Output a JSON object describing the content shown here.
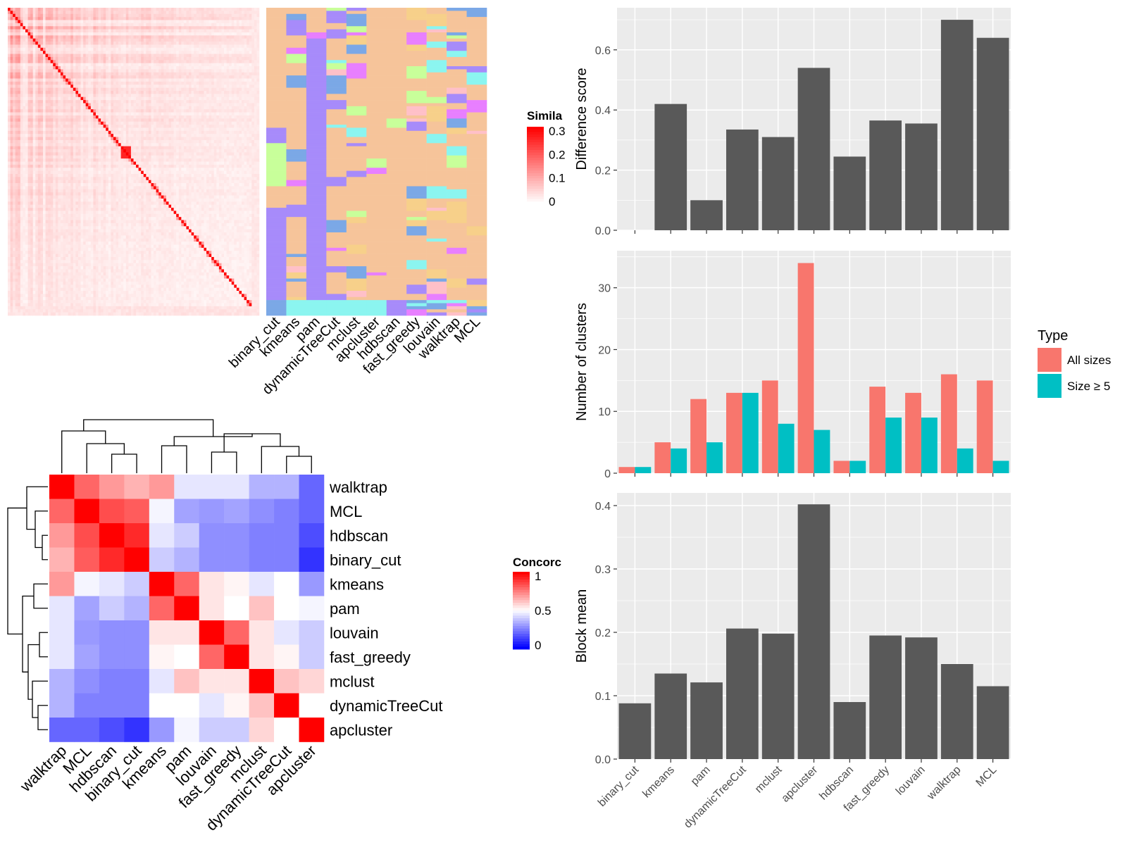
{
  "chart_data": [
    {
      "type": "heatmap",
      "id": "similarity_heatmap",
      "legend_title": "Simila",
      "legend_ticks": [
        "0.3",
        "0.2",
        "0.1",
        "0"
      ],
      "colors": {
        "high": "#ff0000",
        "low": "#ffffff"
      }
    },
    {
      "type": "heatmap",
      "id": "cluster_membership",
      "columns": [
        "binary_cut",
        "kmeans",
        "pam",
        "dynamicTreeCut",
        "mclust",
        "apcluster",
        "hdbscan",
        "fast_greedy",
        "louvain",
        "walktrap",
        "MCL"
      ],
      "palette": [
        "#f6c49a",
        "#a78bfa",
        "#7ba8e6",
        "#8bf5f0",
        "#c8ff9a",
        "#ffc0c8",
        "#e87fff",
        "#f7d08a"
      ]
    },
    {
      "type": "heatmap",
      "id": "concordance_heatmap",
      "legend_title": "Concorc",
      "legend_ticks": [
        "1",
        "0.5",
        "0"
      ],
      "colors": {
        "high": "#ff0000",
        "mid": "#ffffff",
        "low": "#0000ff"
      },
      "rows": [
        "walktrap",
        "MCL",
        "hdbscan",
        "binary_cut",
        "kmeans",
        "pam",
        "louvain",
        "fast_greedy",
        "mclust",
        "dynamicTreeCut",
        "apcluster"
      ],
      "columns": [
        "walktrap",
        "MCL",
        "hdbscan",
        "binary_cut",
        "kmeans",
        "pam",
        "louvain",
        "fast_greedy",
        "mclust",
        "dynamicTreeCut",
        "apcluster"
      ],
      "values": [
        [
          1.0,
          0.8,
          0.7,
          0.65,
          0.7,
          0.45,
          0.45,
          0.45,
          0.35,
          0.35,
          0.2
        ],
        [
          0.8,
          1.0,
          0.85,
          0.82,
          0.48,
          0.32,
          0.3,
          0.32,
          0.28,
          0.25,
          0.2
        ],
        [
          0.7,
          0.85,
          1.0,
          0.92,
          0.45,
          0.4,
          0.28,
          0.28,
          0.25,
          0.25,
          0.15
        ],
        [
          0.65,
          0.82,
          0.92,
          1.0,
          0.4,
          0.35,
          0.28,
          0.28,
          0.25,
          0.25,
          0.1
        ],
        [
          0.7,
          0.48,
          0.45,
          0.4,
          1.0,
          0.8,
          0.55,
          0.52,
          0.45,
          0.5,
          0.3
        ],
        [
          0.45,
          0.32,
          0.4,
          0.35,
          0.8,
          1.0,
          0.55,
          0.5,
          0.62,
          0.5,
          0.48
        ],
        [
          0.45,
          0.3,
          0.28,
          0.28,
          0.55,
          0.55,
          1.0,
          0.8,
          0.55,
          0.45,
          0.4
        ],
        [
          0.45,
          0.32,
          0.28,
          0.28,
          0.52,
          0.5,
          0.8,
          1.0,
          0.55,
          0.52,
          0.4
        ],
        [
          0.35,
          0.28,
          0.25,
          0.25,
          0.45,
          0.62,
          0.55,
          0.55,
          1.0,
          0.62,
          0.58
        ],
        [
          0.35,
          0.25,
          0.25,
          0.25,
          0.5,
          0.5,
          0.45,
          0.52,
          0.62,
          1.0,
          0.5
        ],
        [
          0.2,
          0.2,
          0.15,
          0.1,
          0.3,
          0.48,
          0.4,
          0.4,
          0.58,
          0.5,
          1.0
        ]
      ]
    },
    {
      "type": "bar",
      "id": "difference_score",
      "ylabel": "Difference score",
      "categories": [
        "binary_cut",
        "kmeans",
        "pam",
        "dynamicTreeCut",
        "mclust",
        "apcluster",
        "hdbscan",
        "fast_greedy",
        "louvain",
        "walktrap",
        "MCL"
      ],
      "values": [
        0.0,
        0.42,
        0.1,
        0.335,
        0.31,
        0.54,
        0.245,
        0.365,
        0.355,
        0.7,
        0.64
      ],
      "ylim": [
        0,
        0.74
      ],
      "yticks": [
        "0.0",
        "0.2",
        "0.4",
        "0.6"
      ],
      "grid": true,
      "bar_color": "#595959"
    },
    {
      "type": "bar",
      "id": "number_of_clusters",
      "ylabel": "Number of clusters",
      "categories": [
        "binary_cut",
        "kmeans",
        "pam",
        "dynamicTreeCut",
        "mclust",
        "apcluster",
        "hdbscan",
        "fast_greedy",
        "louvain",
        "walktrap",
        "MCL"
      ],
      "series": [
        {
          "name": "All sizes",
          "color": "#f8766d",
          "values": [
            1,
            5,
            12,
            13,
            15,
            34,
            2,
            14,
            13,
            16,
            15
          ]
        },
        {
          "name": "Size ≥ 5",
          "color": "#00bfc4",
          "values": [
            1,
            4,
            5,
            13,
            8,
            7,
            2,
            9,
            9,
            4,
            2
          ]
        }
      ],
      "legend_title": "Type",
      "legend_position": "right",
      "ylim": [
        0,
        36
      ],
      "yticks": [
        "0",
        "10",
        "20",
        "30"
      ],
      "grid": true
    },
    {
      "type": "bar",
      "id": "block_mean",
      "ylabel": "Block mean",
      "categories": [
        "binary_cut",
        "kmeans",
        "pam",
        "dynamicTreeCut",
        "mclust",
        "apcluster",
        "hdbscan",
        "fast_greedy",
        "louvain",
        "walktrap",
        "MCL"
      ],
      "values": [
        0.088,
        0.135,
        0.121,
        0.206,
        0.198,
        0.402,
        0.09,
        0.195,
        0.192,
        0.15,
        0.115
      ],
      "ylim": [
        0,
        0.42
      ],
      "yticks": [
        "0.0",
        "0.1",
        "0.2",
        "0.3",
        "0.4"
      ],
      "grid": true,
      "bar_color": "#595959"
    }
  ]
}
